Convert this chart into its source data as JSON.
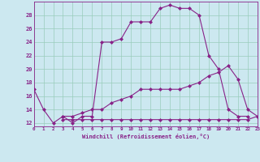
{
  "xlabel": "Windchill (Refroidissement éolien,°C)",
  "bg_color": "#cce8f0",
  "line_color": "#882288",
  "grid_color": "#99ccbb",
  "x_values": [
    0,
    1,
    2,
    3,
    4,
    5,
    6,
    7,
    8,
    9,
    10,
    11,
    12,
    13,
    14,
    15,
    16,
    17,
    18,
    19,
    20,
    21,
    22,
    23
  ],
  "line1": [
    17,
    14,
    12,
    13,
    12,
    13,
    13,
    24,
    24,
    24.5,
    27,
    27,
    27,
    29,
    29.5,
    29,
    29,
    28,
    22,
    20,
    14,
    13,
    13,
    null
  ],
  "line2": [
    null,
    null,
    null,
    13,
    13,
    13.5,
    14,
    14,
    15,
    15.5,
    16,
    17,
    17,
    17,
    17,
    17,
    17.5,
    18,
    19,
    19.5,
    20.5,
    18.5,
    14,
    13
  ],
  "line3": [
    null,
    null,
    null,
    12.5,
    12.5,
    12.5,
    12.5,
    12.5,
    12.5,
    12.5,
    12.5,
    12.5,
    12.5,
    12.5,
    12.5,
    12.5,
    12.5,
    12.5,
    12.5,
    12.5,
    12.5,
    12.5,
    12.5,
    13
  ],
  "xlim": [
    0,
    23
  ],
  "ylim": [
    11.5,
    30
  ],
  "yticks": [
    12,
    14,
    16,
    18,
    20,
    22,
    24,
    26,
    28
  ],
  "xticks": [
    0,
    1,
    2,
    3,
    4,
    5,
    6,
    7,
    8,
    9,
    10,
    11,
    12,
    13,
    14,
    15,
    16,
    17,
    18,
    19,
    20,
    21,
    22,
    23
  ]
}
